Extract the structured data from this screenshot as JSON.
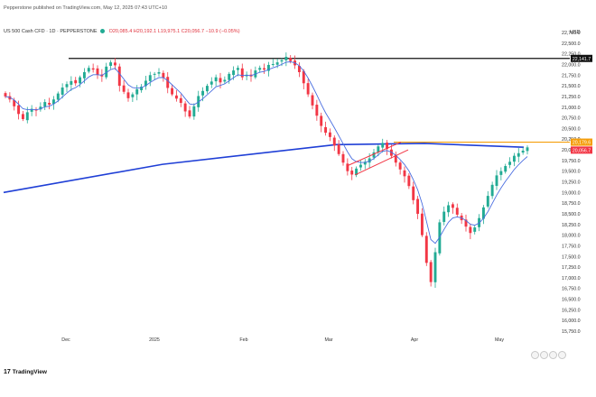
{
  "header": {
    "publisher": "Pepperstone published on TradingView.com, May 12, 2025 07:43 UTC+10",
    "symbol": "US 500 Cash CFD · 1D · PEPPERSTONE",
    "ohlc": "O20,085.4 H20,192.1 L19,975.1 C20,056.7 −10.9 (−0.05%)",
    "currency": "USD"
  },
  "brand": {
    "logo_text": "TradingView",
    "logo_mark": "17"
  },
  "colors": {
    "up": "#22ab94",
    "down": "#f23645",
    "ma_fast": "#4a6ee0",
    "ma_slow": "#1f3fd6",
    "resistance": "#f59e0b",
    "channel": "#f23645"
  },
  "chart_data": {
    "type": "candlestick",
    "ylim": [
      15750,
      22750
    ],
    "y_ticks": [
      "22,750.0",
      "22,500.0",
      "22,250.0",
      "22,000.0",
      "21,750.0",
      "21,500.0",
      "21,250.0",
      "21,000.0",
      "20,750.0",
      "20,500.0",
      "20,250.0",
      "20,000.0",
      "19,750.0",
      "19,500.0",
      "19,250.0",
      "19,000.0",
      "18,750.0",
      "18,500.0",
      "18,250.0",
      "18,000.0",
      "17,750.0",
      "17,500.0",
      "17,250.0",
      "17,000.0",
      "16,750.0",
      "16,500.0",
      "16,250.0",
      "16,000.0",
      "15,750.0"
    ],
    "x_labels": [
      "Dec",
      "2025",
      "Feb",
      "Mar",
      "Apr",
      "May"
    ],
    "price_labels": [
      {
        "label": "22,141.7",
        "value": 22141.7,
        "color": "#111111"
      },
      {
        "label": "20,179.6",
        "value": 20179.6,
        "color": "#f59e0b"
      },
      {
        "label": "20,056.7",
        "value": 20056.7,
        "color": "#f23645"
      }
    ],
    "horizontal_lines": [
      {
        "name": "high",
        "value": 22141.7,
        "color": "#111111"
      },
      {
        "name": "resistance",
        "value": 20179.6,
        "color": "#f59e0b"
      }
    ],
    "closes": [
      21250,
      21180,
      21020,
      20840,
      20720,
      20880,
      20960,
      20920,
      21010,
      21120,
      21060,
      21180,
      21320,
      21460,
      21540,
      21610,
      21560,
      21700,
      21820,
      21920,
      21880,
      21760,
      21720,
      21950,
      22050,
      21980,
      21500,
      21360,
      21210,
      21300,
      21420,
      21480,
      21620,
      21750,
      21780,
      21820,
      21690,
      21450,
      21300,
      21200,
      21100,
      20900,
      20780,
      21020,
      21260,
      21380,
      21500,
      21600,
      21700,
      21580,
      21640,
      21780,
      21860,
      21920,
      21700,
      21760,
      21720,
      21860,
      21920,
      21880,
      21990,
      22010,
      22050,
      22100,
      22180,
      22080,
      21980,
      21820,
      21560,
      21300,
      21040,
      20800,
      20560,
      20400,
      20300,
      20100,
      19900,
      19700,
      19500,
      19420,
      19560,
      19650,
      19720,
      19800,
      19940,
      20080,
      20160,
      20020,
      19860,
      19700,
      19540,
      19380,
      19150,
      18820,
      18500,
      18000,
      17350,
      16900,
      17600,
      18300,
      18550,
      18700,
      18640,
      18480,
      18350,
      18200,
      18050,
      18180,
      18400,
      18650,
      18920,
      19180,
      19400,
      19500,
      19620,
      19720,
      19860,
      19920,
      19980,
      20056.7
    ],
    "ma_fast_end": 19940,
    "ma_slow": [
      19000,
      19660,
      20120,
      20150,
      20060
    ],
    "channel": {
      "lower": [
        19410,
        20000
      ],
      "upper": [
        19620,
        20180
      ]
    }
  }
}
